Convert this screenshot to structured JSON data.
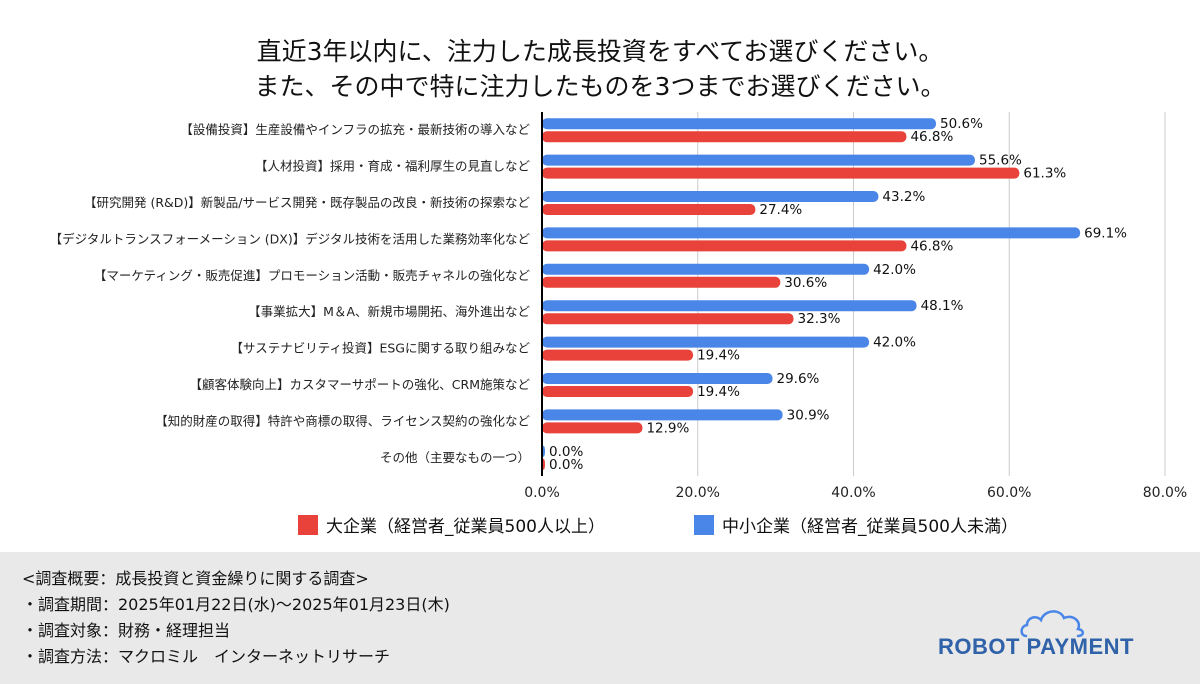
{
  "title": {
    "line1": "直近3年以内に、注力した成長投資をすべてお選びください。",
    "line2": "また、その中で特に注力したものを3つまでお選びください。"
  },
  "colors": {
    "large": "#e8423b",
    "small": "#4a86e8",
    "grid": "#cccccc",
    "axis": "#000000",
    "footer_bg": "#e9e9e9",
    "logo": "#2f62a8"
  },
  "chart_data": {
    "type": "bar",
    "orientation": "horizontal",
    "categories": [
      "【設備投資】生産設備やインフラの拡充・最新技術の導入など",
      "【人材投資】採用・育成・福利厚生の見直しなど",
      "【研究開発 (R&D)】新製品/サービス開発・既存製品の改良・新技術の探索など",
      "【デジタルトランスフォーメーション (DX)】デジタル技術を活用した業務効率化など",
      "【マーケティング・販売促進】プロモーション活動・販売チャネルの強化など",
      "【事業拡大】M＆A、新規市場開拓、海外進出など",
      "【サステナビリティ投資】ESGに関する取り組みなど",
      "【顧客体験向上】カスタマーサポートの強化、CRM施策など",
      "【知的財産の取得】特許や商標の取得、ライセンス契約の強化など",
      "その他（主要なもの一つ）"
    ],
    "series": [
      {
        "name": "中小企業（経営者_従業員500人未満）",
        "values": [
          50.6,
          55.6,
          43.2,
          69.1,
          42.0,
          48.1,
          42.0,
          29.6,
          30.9,
          0.0
        ],
        "labels": [
          "50.6%",
          "55.6%",
          "43.2%",
          "69.1%",
          "42.0%",
          "48.1%",
          "42.0%",
          "29.6%",
          "30.9%",
          "0.0%"
        ]
      },
      {
        "name": "大企業（経営者_従業員500人以上）",
        "values": [
          46.8,
          61.3,
          27.4,
          46.8,
          30.6,
          32.3,
          19.4,
          19.4,
          12.9,
          0.0
        ],
        "labels": [
          "46.8%",
          "61.3%",
          "27.4%",
          "46.8%",
          "30.6%",
          "32.3%",
          "19.4%",
          "19.4%",
          "12.9%",
          "0.0%"
        ]
      }
    ],
    "x_ticks": [
      0,
      20,
      40,
      60,
      80
    ],
    "x_tick_labels": [
      "0.0%",
      "20.0%",
      "40.0%",
      "60.0%",
      "80.0%"
    ],
    "xlim": [
      0,
      80
    ],
    "grid": true,
    "legend_position": "bottom"
  },
  "legend": {
    "large_label": "大企業（経営者_従業員500人以上）",
    "small_label": "中小企業（経営者_従業員500人未満）"
  },
  "survey": {
    "overview": "<調査概要：成長投資と資金繰りに関する調査>",
    "period": "・調査期間：2025年01月22日(水)〜2025年01月23日(木)",
    "target": "・調査対象：財務・経理担当",
    "method": "・調査方法：マクロミル　インターネットリサーチ"
  },
  "logo": {
    "text": "ROBOT PAYMENT"
  }
}
